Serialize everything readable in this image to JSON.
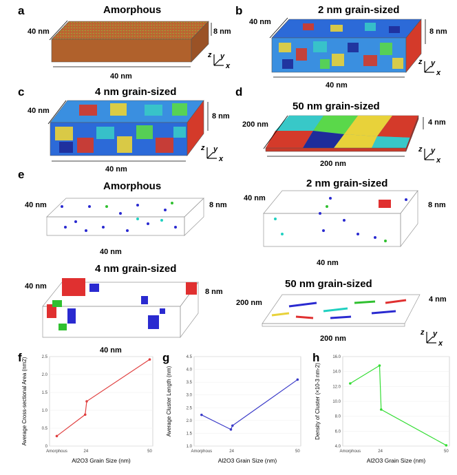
{
  "panels": {
    "a": {
      "label": "a",
      "title": "Amorphous",
      "dim_depth": "40 nm",
      "dim_height": "8 nm",
      "dim_width": "40 nm"
    },
    "b": {
      "label": "b",
      "title": "2 nm grain-sized",
      "dim_depth": "40 nm",
      "dim_height": "8 nm",
      "dim_width": "40 nm"
    },
    "c": {
      "label": "c",
      "title": "4 nm grain-sized",
      "dim_depth": "40 nm",
      "dim_height": "8 nm",
      "dim_width": "40 nm"
    },
    "d": {
      "label": "d",
      "title": "50 nm grain-sized",
      "dim_depth": "200 nm",
      "dim_height": "4 nm",
      "dim_width": "200 nm"
    },
    "e": {
      "label": "e",
      "amorphous": {
        "title": "Amorphous",
        "dim_depth": "40 nm",
        "dim_height": "8 nm",
        "dim_width": "40 nm"
      },
      "g2": {
        "title": "2 nm grain-sized",
        "dim_depth": "40 nm",
        "dim_height": "8 nm",
        "dim_width": "40 nm"
      },
      "g4": {
        "title": "4 nm grain-sized",
        "dim_depth": "40 nm",
        "dim_height": "8 nm",
        "dim_width": "40 nm"
      },
      "g50": {
        "title": "50 nm grain-sized",
        "dim_depth": "200 nm",
        "dim_height": "4 nm",
        "dim_width": "200 nm"
      }
    },
    "f": {
      "label": "f"
    },
    "g": {
      "label": "g"
    },
    "h": {
      "label": "h"
    }
  },
  "axes_glyphs": {
    "z": "z",
    "y": "y",
    "x": "x"
  },
  "colors": {
    "amorphous": "#b5652e",
    "red_series": "#e04040",
    "blue_series": "#3a3ac8",
    "green_series": "#33dd33"
  },
  "chart_data": [
    {
      "type": "line",
      "panel": "f",
      "categories": [
        "Amorphous",
        "2",
        "4",
        "50"
      ],
      "x": [
        0,
        2,
        4,
        50
      ],
      "values": [
        0.28,
        0.88,
        1.25,
        2.42
      ],
      "xlabel": "Al2O3 Grain Size (nm)",
      "ylabel": "Average Cross-sectional Area (nm2)",
      "ylim": [
        0,
        2.5
      ],
      "yticks": [
        "0",
        "0.5",
        "1.0",
        "1.5",
        "2.0",
        "2.5"
      ],
      "xtick_labels": [
        "Amorphous",
        "24",
        "50"
      ]
    },
    {
      "type": "line",
      "panel": "g",
      "categories": [
        "Amorphous",
        "2",
        "4",
        "50"
      ],
      "x": [
        0,
        2,
        4,
        50
      ],
      "values": [
        2.22,
        1.65,
        1.8,
        3.6
      ],
      "xlabel": "Al2O3 Grain Size (nm)",
      "ylabel": "Average Cluster Length (nm)",
      "ylim": [
        1.0,
        4.5
      ],
      "yticks": [
        "1.0",
        "1.5",
        "2.0",
        "2.5",
        "3.0",
        "3.5",
        "4.0",
        "4.5"
      ],
      "xtick_labels": [
        "Amorphous",
        "24",
        "50"
      ]
    },
    {
      "type": "line",
      "panel": "h",
      "categories": [
        "Amorphous",
        "2",
        "4",
        "50"
      ],
      "x": [
        0,
        2,
        4,
        50
      ],
      "values": [
        12.4,
        14.8,
        8.9,
        4.1
      ],
      "xlabel": "Al2O3 Grain Size (nm)",
      "ylabel": "Density of Cluster (×10-3 nm-2)",
      "ylim": [
        4.0,
        16.0
      ],
      "yticks": [
        "4.0",
        "6.0",
        "8.0",
        "10.0",
        "12.0",
        "14.0",
        "16.0"
      ],
      "xtick_labels": [
        "Amorphous",
        "24",
        "50"
      ]
    }
  ]
}
